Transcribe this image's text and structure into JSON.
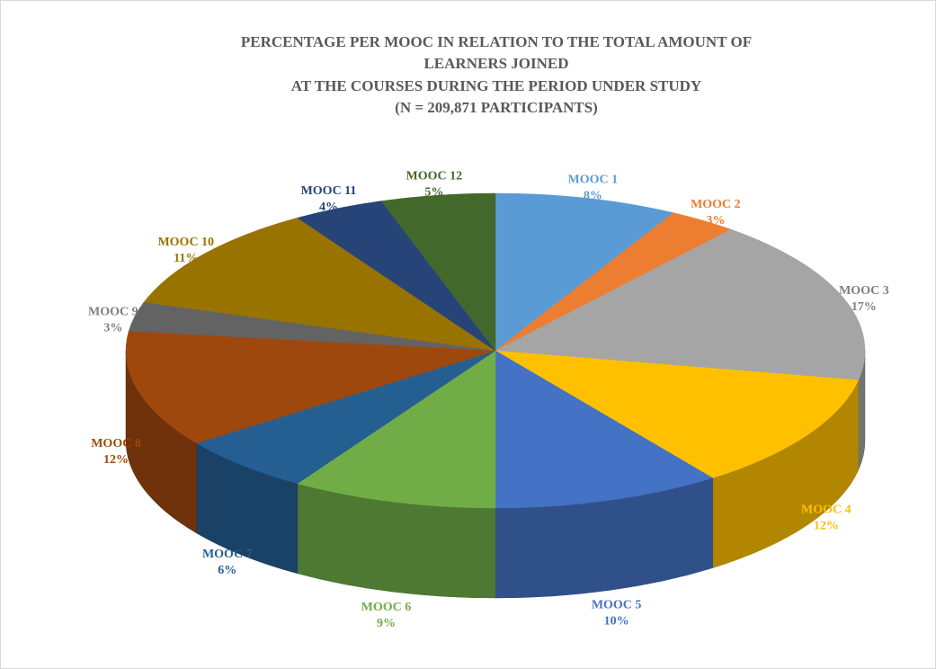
{
  "chart_data": {
    "type": "pie3d",
    "title": [
      "PERCENTAGE PER MOOC IN RELATION TO THE TOTAL AMOUNT OF",
      "LEARNERS JOINED",
      "AT THE COURSES  DURING THE PERIOD UNDER STUDY",
      "(N = 209,871  PARTICIPANTS)"
    ],
    "categories": [
      "MOOC 1",
      "MOOC 2",
      "MOOC 3",
      "MOOC 4",
      "MOOC 5",
      "MOOC 6",
      "MOOC 7",
      "MOOC 8",
      "MOOC 9",
      "MOOC 10",
      "MOOC 11",
      "MOOC 12"
    ],
    "values": [
      8,
      3,
      17,
      12,
      10,
      9,
      6,
      12,
      3,
      11,
      4,
      5
    ],
    "value_labels": [
      "8%",
      "3%",
      "17%",
      "12%",
      "10%",
      "9%",
      "6%",
      "12%",
      "3%",
      "11%",
      "4%",
      "5%"
    ],
    "colors": [
      "#5b9bd5",
      "#ed7d31",
      "#a5a5a5",
      "#ffc000",
      "#4472c4",
      "#70ad47",
      "#255e91",
      "#9e480e",
      "#636363",
      "#997300",
      "#264478",
      "#43682b"
    ]
  }
}
